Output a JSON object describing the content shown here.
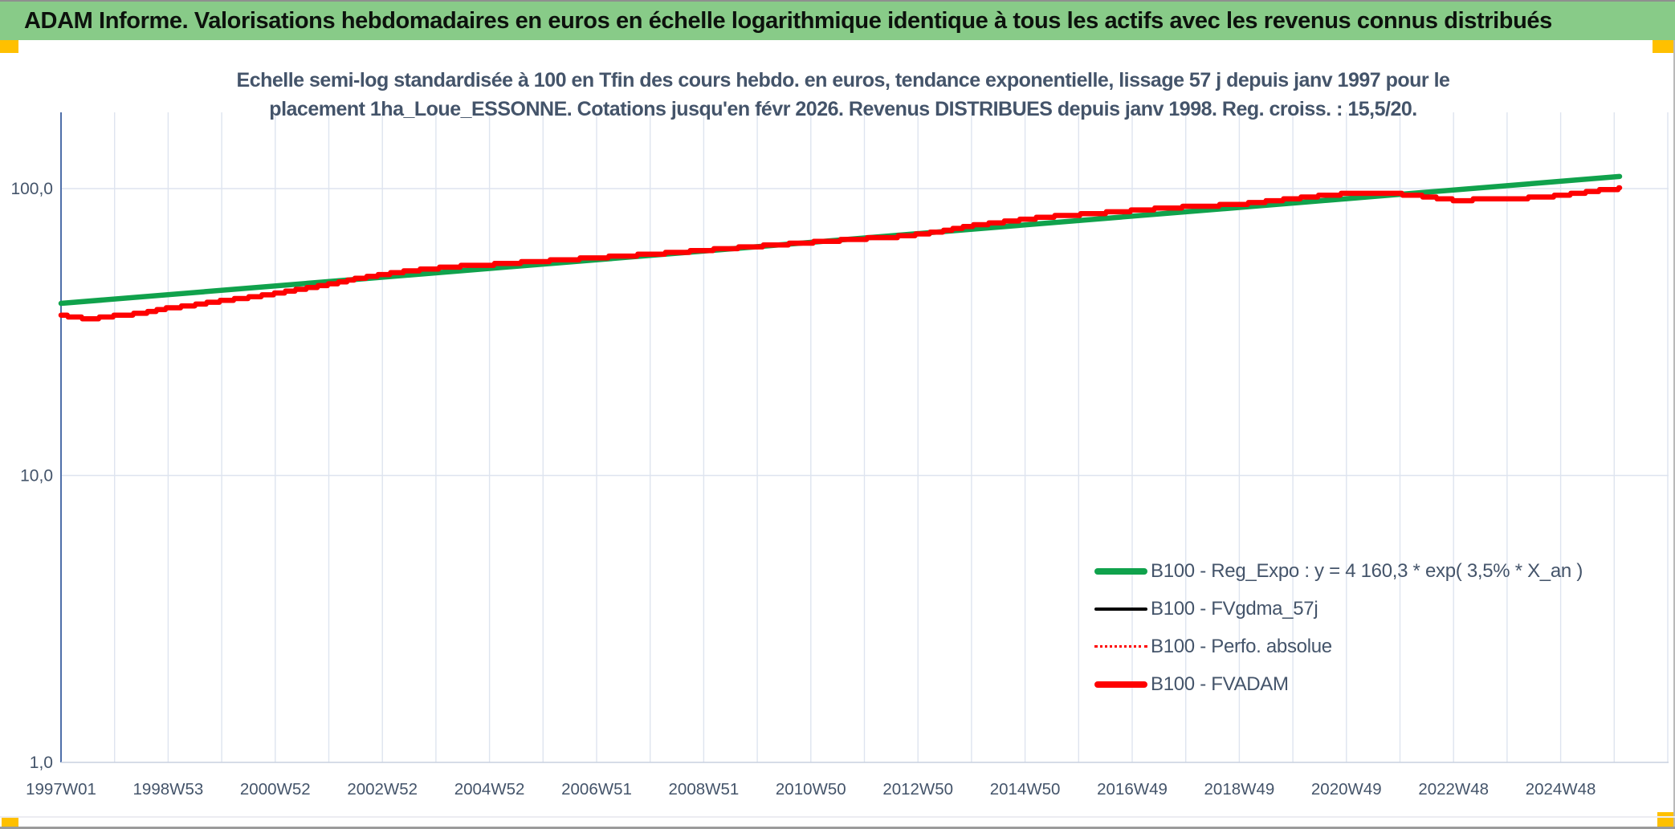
{
  "header": {
    "title": "ADAM Informe. Valorisations hebdomadaires en euros en échelle logarithmique identique à tous les actifs avec les revenus connus distribués"
  },
  "chart": {
    "title_line1": "Echelle semi-log standardisée à 100 en Tfin des cours hebdo. en euros, tendance exponentielle, lissage 57 j depuis janv 1997 pour le",
    "title_line2": "placement 1ha_Loue_ESSONNE. Cotations jusqu'en févr 2026. Revenus DISTRIBUES depuis janv 1998. Reg. croiss. : 15,5/20.",
    "legend": [
      {
        "label": "B100 - Reg_Expo : y = 4 160,3 * exp( 3,5% *  X_an )",
        "color": "#10A24C",
        "style": "thick-solid"
      },
      {
        "label": "B100 - FVgdma_57j",
        "color": "#000000",
        "style": "thin-solid"
      },
      {
        "label": "B100 - Perfo. absolue",
        "color": "#FE0000",
        "style": "dotted"
      },
      {
        "label": "B100 - FVADAM",
        "color": "#FE0000",
        "style": "thick-solid"
      }
    ],
    "colors": {
      "regression_green": "#10A24C",
      "fvadam_red": "#FE0000",
      "gdma_black": "#000000",
      "grid": "#dee4ef",
      "y_axis_line": "#4e6fa9",
      "x_axis_line": "#c9d1df",
      "text": "#44546A",
      "header_green": "#88cb88",
      "corner_yellow": "#FFC000"
    }
  },
  "chart_data": {
    "type": "line",
    "title": "Echelle semi-log standardisée à 100 en Tfin des cours hebdo. en euros, tendance exponentielle, lissage 57 j depuis janv 1997 pour le placement 1ha_Loue_ESSONNE. Cotations jusqu'en févr 2026. Revenus DISTRIBUES depuis janv 1998. Reg. croiss. : 15,5/20.",
    "x_axis": {
      "scale": "linear-weekly",
      "min_year": 1997.0,
      "max_year": 2027.0,
      "gridline_interval_years": 1,
      "tick_labels": [
        {
          "label": "1997W01",
          "year": 1997.0
        },
        {
          "label": "1998W53",
          "year": 1999.0
        },
        {
          "label": "2000W52",
          "year": 2001.0
        },
        {
          "label": "2002W52",
          "year": 2003.0
        },
        {
          "label": "2004W52",
          "year": 2005.0
        },
        {
          "label": "2006W51",
          "year": 2007.0
        },
        {
          "label": "2008W51",
          "year": 2009.0
        },
        {
          "label": "2010W50",
          "year": 2011.0
        },
        {
          "label": "2012W50",
          "year": 2013.0
        },
        {
          "label": "2014W50",
          "year": 2015.0
        },
        {
          "label": "2016W49",
          "year": 2017.0
        },
        {
          "label": "2018W49",
          "year": 2019.0
        },
        {
          "label": "2020W49",
          "year": 2021.0
        },
        {
          "label": "2022W48",
          "year": 2023.0
        },
        {
          "label": "2024W48",
          "year": 2025.0
        }
      ]
    },
    "y_axis": {
      "scale": "log10",
      "min": 1.0,
      "max": 215.0,
      "tick_labels": [
        {
          "label": "100,0",
          "value": 100
        },
        {
          "label": "10,0",
          "value": 10
        },
        {
          "label": "1,0",
          "value": 1
        }
      ]
    },
    "grid": true,
    "legend_position": "inside-lower-right",
    "series": [
      {
        "name": "B100 - Reg_Expo : y = 4 160,3 * exp( 3,5% *  X_an )",
        "kind": "exponential-regression",
        "color": "#10A24C",
        "width": 6.5,
        "start_year": 1997.0,
        "end_year": 2026.1,
        "start_value": 39.8,
        "growth_rate_per_year": 0.035
      },
      {
        "name": "B100 - FVgdma_57j",
        "kind": "line",
        "color": "#000000",
        "width": 2.5,
        "points_ref": "fvadam_points",
        "note": "coincides with FVADAM, hidden beneath it"
      },
      {
        "name": "B100 - Perfo. absolue",
        "kind": "dotted-line",
        "color": "#FE0000",
        "width": 2,
        "dash": "2 5",
        "points_ref": "fvadam_points",
        "note": "coincides with FVADAM, hidden beneath it"
      },
      {
        "name": "B100 - FVADAM",
        "kind": "line",
        "color": "#FE0000",
        "width": 6.5,
        "points_ref": "fvadam_points"
      }
    ],
    "fvadam_points": [
      [
        1997.0,
        36.2
      ],
      [
        1997.15,
        35.9
      ],
      [
        1997.4,
        35.4
      ],
      [
        1997.7,
        35.4
      ],
      [
        1998.0,
        36.0
      ],
      [
        1998.3,
        36.4
      ],
      [
        1998.6,
        37.0
      ],
      [
        1999.0,
        38.3
      ],
      [
        1999.4,
        39.0
      ],
      [
        1999.8,
        40.1
      ],
      [
        2000.2,
        41.0
      ],
      [
        2000.6,
        41.9
      ],
      [
        2001.0,
        43.0
      ],
      [
        2001.4,
        44.3
      ],
      [
        2001.8,
        45.6
      ],
      [
        2002.2,
        47.0
      ],
      [
        2002.5,
        48.4
      ],
      [
        2003.0,
        50.1
      ],
      [
        2003.4,
        51.3
      ],
      [
        2003.8,
        52.3
      ],
      [
        2004.2,
        53.1
      ],
      [
        2004.6,
        53.9
      ],
      [
        2005.0,
        54.3
      ],
      [
        2005.5,
        55.1
      ],
      [
        2006.0,
        55.9
      ],
      [
        2006.5,
        56.6
      ],
      [
        2007.0,
        57.4
      ],
      [
        2007.5,
        58.2
      ],
      [
        2008.0,
        59.0
      ],
      [
        2008.5,
        59.9
      ],
      [
        2009.0,
        60.9
      ],
      [
        2009.5,
        61.9
      ],
      [
        2010.0,
        62.9
      ],
      [
        2010.5,
        63.9
      ],
      [
        2011.0,
        64.9
      ],
      [
        2011.5,
        65.9
      ],
      [
        2012.0,
        66.9
      ],
      [
        2012.5,
        67.6
      ],
      [
        2013.0,
        69.1
      ],
      [
        2013.5,
        71.2
      ],
      [
        2014.0,
        74.2
      ],
      [
        2014.5,
        76.1
      ],
      [
        2015.0,
        78.1
      ],
      [
        2015.5,
        79.9
      ],
      [
        2016.0,
        81.1
      ],
      [
        2016.5,
        82.4
      ],
      [
        2017.0,
        83.7
      ],
      [
        2017.5,
        85.1
      ],
      [
        2018.0,
        86.3
      ],
      [
        2018.5,
        87.2
      ],
      [
        2019.0,
        88.1
      ],
      [
        2019.5,
        90.1
      ],
      [
        2020.0,
        92.1
      ],
      [
        2020.5,
        94.3
      ],
      [
        2021.0,
        95.9
      ],
      [
        2021.4,
        96.4
      ],
      [
        2021.8,
        96.1
      ],
      [
        2022.1,
        95.4
      ],
      [
        2022.5,
        93.8
      ],
      [
        2022.8,
        92.1
      ],
      [
        2023.1,
        90.9
      ],
      [
        2023.5,
        91.7
      ],
      [
        2024.0,
        92.3
      ],
      [
        2024.5,
        92.9
      ],
      [
        2025.0,
        94.6
      ],
      [
        2025.4,
        96.6
      ],
      [
        2025.8,
        98.9
      ],
      [
        2026.1,
        100.0
      ]
    ]
  }
}
